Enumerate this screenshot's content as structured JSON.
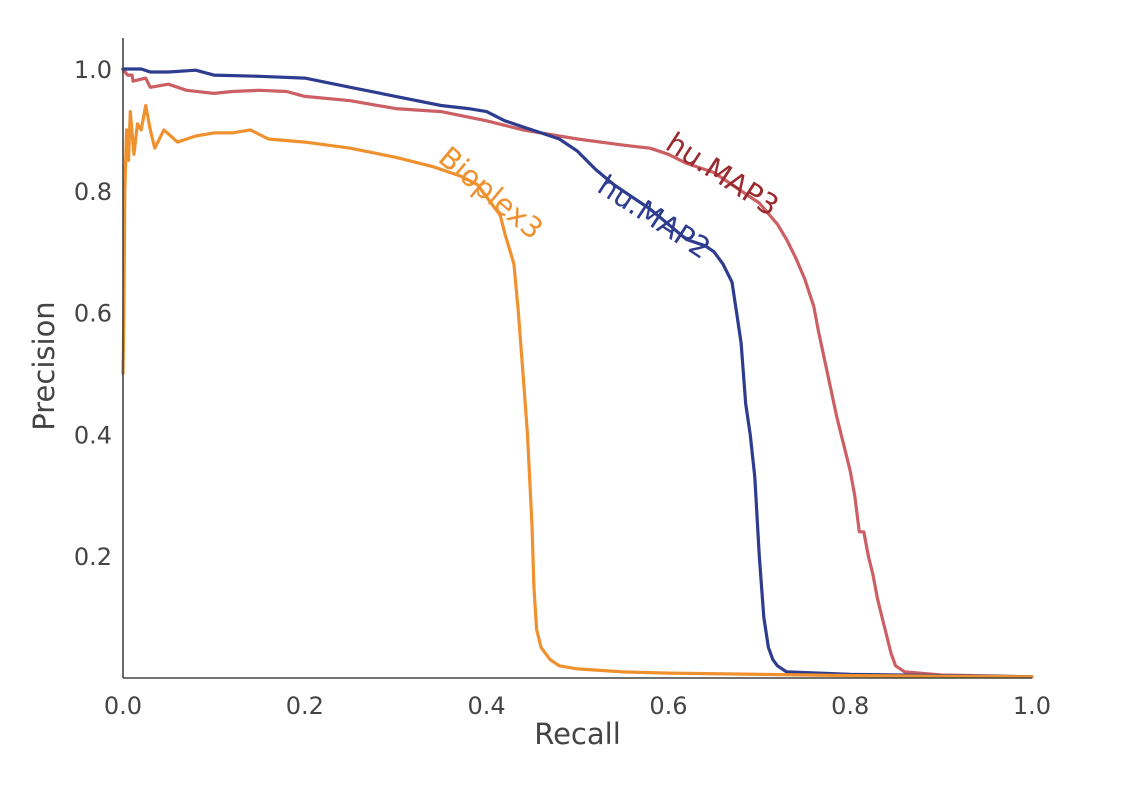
{
  "chart_data": {
    "type": "line",
    "title": "",
    "xlabel": "Recall",
    "ylabel": "Precision",
    "xlim": [
      0.0,
      1.0
    ],
    "ylim": [
      0.0,
      1.05
    ],
    "grid": false,
    "legend": "none (inline curve labels)",
    "x_ticks": [
      {
        "value": 0.0,
        "label": "0.0"
      },
      {
        "value": 0.2,
        "label": "0.2"
      },
      {
        "value": 0.4,
        "label": "0.4"
      },
      {
        "value": 0.6,
        "label": "0.6"
      },
      {
        "value": 0.8,
        "label": "0.8"
      },
      {
        "value": 1.0,
        "label": "1.0"
      }
    ],
    "y_ticks": [
      {
        "value": 0.2,
        "label": "0.2"
      },
      {
        "value": 0.4,
        "label": "0.4"
      },
      {
        "value": 0.6,
        "label": "0.6"
      },
      {
        "value": 0.8,
        "label": "0.8"
      },
      {
        "value": 1.0,
        "label": "1.0"
      }
    ],
    "series": [
      {
        "name": "hu.MAP3",
        "line_color": "#cc5f63",
        "label_color": "#9a2a2e",
        "label_anchor": [
          0.595,
          0.87
        ],
        "label_rotation": 33,
        "points": [
          [
            0.0,
            1.0
          ],
          [
            0.005,
            0.99
          ],
          [
            0.01,
            0.99
          ],
          [
            0.011,
            0.98
          ],
          [
            0.025,
            0.985
          ],
          [
            0.03,
            0.97
          ],
          [
            0.05,
            0.975
          ],
          [
            0.07,
            0.965
          ],
          [
            0.1,
            0.96
          ],
          [
            0.12,
            0.963
          ],
          [
            0.15,
            0.965
          ],
          [
            0.18,
            0.963
          ],
          [
            0.2,
            0.955
          ],
          [
            0.25,
            0.948
          ],
          [
            0.3,
            0.935
          ],
          [
            0.35,
            0.93
          ],
          [
            0.4,
            0.915
          ],
          [
            0.44,
            0.9
          ],
          [
            0.48,
            0.89
          ],
          [
            0.5,
            0.885
          ],
          [
            0.55,
            0.875
          ],
          [
            0.58,
            0.87
          ],
          [
            0.6,
            0.86
          ],
          [
            0.62,
            0.845
          ],
          [
            0.65,
            0.83
          ],
          [
            0.68,
            0.8
          ],
          [
            0.7,
            0.78
          ],
          [
            0.72,
            0.745
          ],
          [
            0.73,
            0.72
          ],
          [
            0.74,
            0.69
          ],
          [
            0.75,
            0.655
          ],
          [
            0.76,
            0.61
          ],
          [
            0.765,
            0.57
          ],
          [
            0.775,
            0.5
          ],
          [
            0.785,
            0.43
          ],
          [
            0.79,
            0.4
          ],
          [
            0.795,
            0.37
          ],
          [
            0.8,
            0.34
          ],
          [
            0.805,
            0.3
          ],
          [
            0.81,
            0.24
          ],
          [
            0.815,
            0.24
          ],
          [
            0.82,
            0.2
          ],
          [
            0.825,
            0.17
          ],
          [
            0.83,
            0.13
          ],
          [
            0.835,
            0.1
          ],
          [
            0.84,
            0.07
          ],
          [
            0.845,
            0.04
          ],
          [
            0.85,
            0.02
          ],
          [
            0.86,
            0.01
          ],
          [
            0.9,
            0.005
          ],
          [
            1.0,
            0.002
          ]
        ]
      },
      {
        "name": "hu.MAP2",
        "line_color": "#2e3c8f",
        "label_color": "#2e3c8f",
        "label_anchor": [
          0.52,
          0.8
        ],
        "label_rotation": 33,
        "points": [
          [
            0.0,
            1.0
          ],
          [
            0.01,
            1.0
          ],
          [
            0.02,
            1.0
          ],
          [
            0.03,
            0.995
          ],
          [
            0.05,
            0.995
          ],
          [
            0.07,
            0.997
          ],
          [
            0.08,
            0.998
          ],
          [
            0.1,
            0.99
          ],
          [
            0.15,
            0.988
          ],
          [
            0.2,
            0.985
          ],
          [
            0.25,
            0.97
          ],
          [
            0.3,
            0.955
          ],
          [
            0.35,
            0.94
          ],
          [
            0.38,
            0.935
          ],
          [
            0.4,
            0.93
          ],
          [
            0.42,
            0.915
          ],
          [
            0.44,
            0.905
          ],
          [
            0.46,
            0.895
          ],
          [
            0.48,
            0.885
          ],
          [
            0.5,
            0.865
          ],
          [
            0.52,
            0.835
          ],
          [
            0.54,
            0.81
          ],
          [
            0.56,
            0.79
          ],
          [
            0.58,
            0.77
          ],
          [
            0.6,
            0.745
          ],
          [
            0.62,
            0.72
          ],
          [
            0.64,
            0.71
          ],
          [
            0.65,
            0.7
          ],
          [
            0.66,
            0.68
          ],
          [
            0.67,
            0.65
          ],
          [
            0.675,
            0.6
          ],
          [
            0.68,
            0.55
          ],
          [
            0.685,
            0.45
          ],
          [
            0.69,
            0.4
          ],
          [
            0.695,
            0.33
          ],
          [
            0.7,
            0.2
          ],
          [
            0.705,
            0.1
          ],
          [
            0.71,
            0.05
          ],
          [
            0.715,
            0.03
          ],
          [
            0.72,
            0.02
          ],
          [
            0.73,
            0.01
          ],
          [
            0.8,
            0.006
          ],
          [
            0.9,
            0.004
          ],
          [
            1.0,
            0.002
          ]
        ]
      },
      {
        "name": "Bioplex3",
        "line_color": "#f0912f",
        "label_color": "#f0912f",
        "label_anchor": [
          0.345,
          0.85
        ],
        "label_rotation": 40,
        "points": [
          [
            0.0,
            0.5
          ],
          [
            0.001,
            0.6
          ],
          [
            0.002,
            0.8
          ],
          [
            0.004,
            0.9
          ],
          [
            0.006,
            0.85
          ],
          [
            0.008,
            0.93
          ],
          [
            0.012,
            0.86
          ],
          [
            0.016,
            0.91
          ],
          [
            0.02,
            0.9
          ],
          [
            0.025,
            0.94
          ],
          [
            0.03,
            0.9
          ],
          [
            0.035,
            0.87
          ],
          [
            0.045,
            0.9
          ],
          [
            0.06,
            0.88
          ],
          [
            0.08,
            0.89
          ],
          [
            0.1,
            0.895
          ],
          [
            0.12,
            0.895
          ],
          [
            0.14,
            0.9
          ],
          [
            0.16,
            0.885
          ],
          [
            0.2,
            0.88
          ],
          [
            0.25,
            0.87
          ],
          [
            0.3,
            0.855
          ],
          [
            0.34,
            0.84
          ],
          [
            0.37,
            0.825
          ],
          [
            0.39,
            0.81
          ],
          [
            0.405,
            0.78
          ],
          [
            0.415,
            0.76
          ],
          [
            0.42,
            0.73
          ],
          [
            0.43,
            0.68
          ],
          [
            0.435,
            0.6
          ],
          [
            0.44,
            0.5
          ],
          [
            0.445,
            0.4
          ],
          [
            0.45,
            0.25
          ],
          [
            0.452,
            0.15
          ],
          [
            0.455,
            0.08
          ],
          [
            0.46,
            0.05
          ],
          [
            0.47,
            0.03
          ],
          [
            0.48,
            0.02
          ],
          [
            0.5,
            0.015
          ],
          [
            0.55,
            0.01
          ],
          [
            0.6,
            0.008
          ],
          [
            0.8,
            0.004
          ],
          [
            1.0,
            0.002
          ]
        ]
      }
    ]
  }
}
